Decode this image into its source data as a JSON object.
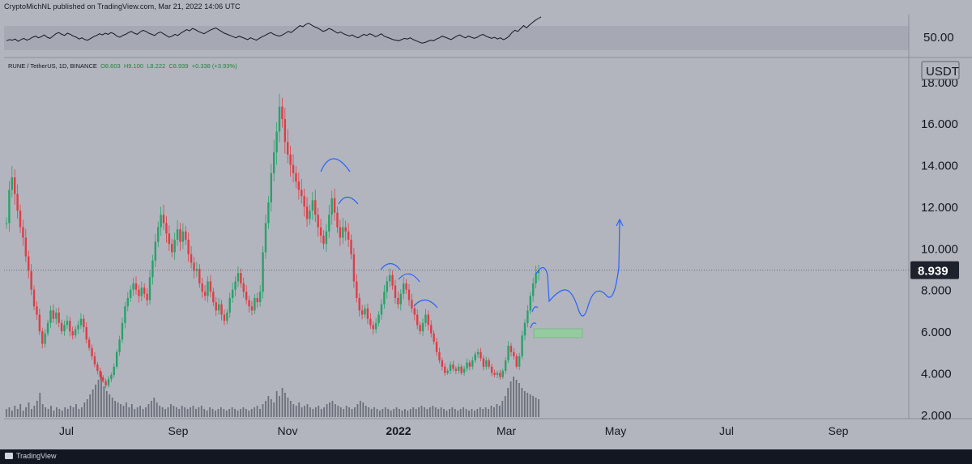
{
  "header": {
    "publisher_text": "CryptoMichNL published on TradingView.com, Mar 21, 2022 14:06 UTC"
  },
  "legend": {
    "symbol_text": "RUNE / TetherUS, 1D, BINANCE",
    "open": "O8.603",
    "high": "H9.100",
    "low": "L8.222",
    "close": "C8.939",
    "change": "+0.338 (+3.93%)"
  },
  "footer": {
    "brand": "TradingView"
  },
  "colors": {
    "background": "#b2b5be",
    "up_candle": "#26a269",
    "down_candle": "#e03c45",
    "annotation_arrow": "#2962ff",
    "support_zone": "#8fcf9a",
    "rsi_line": "#131722"
  },
  "chart_data": [
    {
      "type": "line",
      "title": "RSI",
      "ytick_labels": [
        "50.00"
      ],
      "reference_level": 50,
      "values": [
        44,
        46,
        45,
        47,
        43,
        46,
        48,
        45,
        47,
        50,
        52,
        49,
        51,
        54,
        50,
        48,
        52,
        56,
        58,
        55,
        53,
        57,
        55,
        52,
        50,
        47,
        49,
        46,
        45,
        48,
        51,
        53,
        56,
        54,
        57,
        55,
        58,
        56,
        52,
        50,
        53,
        55,
        58,
        60,
        57,
        55,
        59,
        62,
        60,
        57,
        55,
        53,
        57,
        59,
        56,
        53,
        50,
        52,
        55,
        53,
        57,
        60,
        63,
        61,
        65,
        63,
        60,
        58,
        56,
        59,
        62,
        64,
        66,
        63,
        60,
        57,
        55,
        53,
        51,
        49,
        52,
        50,
        48,
        46,
        49,
        47,
        45,
        48,
        51,
        53,
        56,
        58,
        55,
        53,
        52,
        54,
        57,
        60,
        58,
        62,
        66,
        70,
        68,
        72,
        74,
        71,
        68,
        66,
        63,
        60,
        62,
        65,
        63,
        60,
        57,
        59,
        56,
        54,
        52,
        54,
        51,
        49,
        52,
        55,
        53,
        56,
        54,
        51,
        53,
        56,
        52,
        50,
        48,
        46,
        45,
        44,
        46,
        48,
        47,
        49,
        46,
        44,
        42,
        40,
        41,
        43,
        45,
        44,
        47,
        49,
        52,
        50,
        48,
        46,
        49,
        52,
        54,
        51,
        49,
        52,
        50,
        48,
        50,
        53,
        55,
        52,
        50,
        48,
        50,
        47,
        49,
        46,
        48,
        52,
        58,
        62,
        60,
        65,
        70,
        66,
        71,
        75,
        79,
        82,
        85
      ]
    },
    {
      "type": "candlestick",
      "title": "RUNE / TetherUS, 1D, BINANCE",
      "y_unit": "USDT",
      "ylim": [
        1.8,
        18.5
      ],
      "y_ticks": [
        "2.000",
        "4.000",
        "6.000",
        "8.000",
        "10.000",
        "12.000",
        "14.000",
        "16.000",
        "18.000"
      ],
      "x_ticks": [
        "Jul",
        "Sep",
        "Nov",
        "2022",
        "Mar",
        "May",
        "Jul",
        "Sep"
      ],
      "last_price": "8.939",
      "close_path": [
        11.2,
        12.8,
        13.4,
        12.6,
        11.8,
        11.0,
        10.5,
        9.6,
        8.9,
        8.0,
        7.2,
        6.8,
        6.0,
        5.4,
        5.9,
        6.4,
        7.0,
        6.6,
        6.9,
        6.4,
        6.0,
        6.3,
        6.5,
        6.0,
        5.8,
        6.1,
        6.3,
        6.6,
        6.2,
        5.6,
        5.2,
        4.8,
        4.4,
        4.1,
        3.8,
        3.6,
        3.4,
        3.7,
        3.9,
        4.3,
        5.0,
        5.6,
        6.4,
        7.2,
        7.6,
        8.0,
        8.3,
        8.0,
        7.7,
        8.1,
        7.8,
        7.5,
        8.6,
        9.4,
        10.3,
        11.0,
        11.6,
        11.2,
        10.7,
        10.2,
        9.8,
        10.4,
        10.9,
        10.3,
        10.8,
        10.4,
        9.7,
        9.3,
        8.9,
        9.0,
        8.3,
        7.9,
        7.7,
        8.4,
        7.9,
        7.4,
        7.0,
        7.3,
        6.8,
        6.5,
        6.9,
        7.6,
        8.0,
        8.4,
        8.8,
        8.3,
        7.9,
        7.5,
        7.2,
        7.0,
        7.6,
        7.4,
        7.9,
        9.8,
        11.2,
        12.2,
        13.6,
        14.6,
        15.6,
        16.8,
        16.2,
        15.1,
        14.5,
        14.0,
        13.6,
        13.2,
        12.8,
        12.5,
        12.0,
        11.4,
        11.8,
        12.3,
        11.6,
        11.0,
        10.6,
        10.2,
        10.8,
        11.6,
        12.4,
        11.7,
        11.0,
        10.5,
        11.0,
        10.8,
        10.4,
        9.7,
        8.4,
        7.6,
        7.0,
        6.8,
        7.1,
        6.6,
        6.3,
        6.1,
        6.4,
        6.8,
        7.3,
        7.9,
        8.4,
        8.7,
        8.2,
        7.6,
        7.3,
        7.8,
        8.3,
        8.0,
        7.5,
        7.1,
        6.8,
        6.3,
        6.0,
        6.4,
        6.8,
        6.3,
        5.9,
        5.5,
        5.0,
        4.6,
        4.3,
        4.0,
        4.1,
        4.4,
        4.2,
        4.1,
        4.3,
        4.0,
        4.2,
        4.5,
        4.3,
        4.6,
        4.9,
        5.0,
        4.7,
        4.3,
        4.6,
        4.3,
        4.0,
        3.9,
        4.0,
        3.8,
        4.1,
        4.6,
        5.3,
        5.0,
        4.8,
        4.3,
        4.8,
        5.8,
        6.4,
        7.0,
        7.7,
        8.3,
        8.8,
        8.939
      ],
      "volume_path": [
        0.5,
        0.6,
        0.4,
        0.7,
        0.5,
        0.8,
        0.4,
        0.6,
        0.9,
        0.5,
        0.7,
        1.0,
        1.5,
        0.8,
        0.6,
        0.5,
        0.7,
        0.4,
        0.6,
        0.5,
        0.4,
        0.6,
        0.5,
        0.7,
        0.6,
        0.8,
        0.5,
        0.6,
        0.9,
        1.1,
        1.4,
        1.7,
        2.0,
        2.3,
        2.8,
        1.9,
        1.6,
        1.4,
        1.2,
        1.0,
        0.9,
        0.8,
        0.7,
        0.9,
        0.6,
        0.8,
        0.5,
        0.6,
        0.7,
        0.5,
        0.6,
        0.8,
        1.0,
        1.2,
        0.9,
        0.7,
        0.6,
        0.5,
        0.6,
        0.8,
        0.7,
        0.6,
        0.5,
        0.7,
        0.6,
        0.5,
        0.6,
        0.7,
        0.5,
        0.6,
        0.7,
        0.5,
        0.4,
        0.6,
        0.5,
        0.4,
        0.5,
        0.6,
        0.5,
        0.4,
        0.5,
        0.6,
        0.5,
        0.4,
        0.5,
        0.6,
        0.5,
        0.4,
        0.5,
        0.6,
        0.7,
        0.5,
        0.8,
        1.0,
        1.3,
        1.1,
        0.9,
        1.6,
        1.3,
        1.8,
        1.5,
        1.2,
        1.0,
        0.8,
        0.7,
        0.9,
        0.6,
        0.7,
        0.8,
        0.6,
        0.5,
        0.6,
        0.7,
        0.5,
        0.6,
        0.8,
        0.9,
        1.0,
        0.8,
        0.7,
        0.6,
        0.5,
        0.7,
        0.6,
        0.5,
        0.6,
        0.8,
        1.0,
        0.9,
        0.7,
        0.6,
        0.5,
        0.6,
        0.5,
        0.4,
        0.5,
        0.6,
        0.5,
        0.4,
        0.5,
        0.6,
        0.5,
        0.4,
        0.5,
        0.4,
        0.5,
        0.6,
        0.5,
        0.6,
        0.7,
        0.6,
        0.5,
        0.6,
        0.7,
        0.6,
        0.5,
        0.6,
        0.5,
        0.4,
        0.5,
        0.6,
        0.5,
        0.4,
        0.5,
        0.6,
        0.5,
        0.4,
        0.5,
        0.4,
        0.5,
        0.6,
        0.5,
        0.6,
        0.5,
        0.7,
        0.6,
        0.8,
        0.7,
        1.0,
        1.3,
        1.8,
        2.2,
        2.5,
        2.3,
        2.1,
        1.8,
        1.6,
        1.5,
        1.4,
        1.3,
        1.2,
        1.1
      ]
    }
  ]
}
